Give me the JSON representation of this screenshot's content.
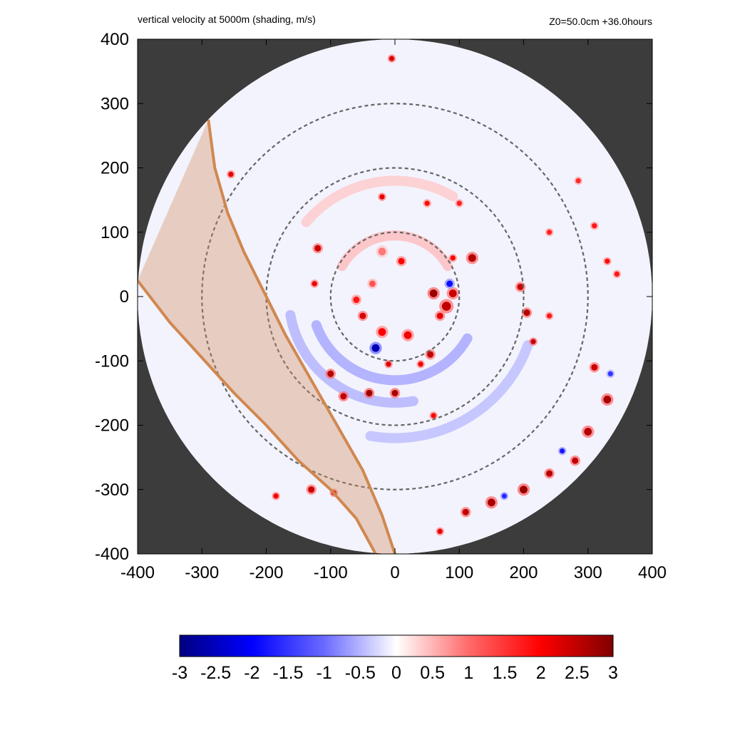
{
  "header": {
    "title": "vertical velocity at 5000m (shading, m/s)",
    "info": "Z0=50.0cm  +36.0hours"
  },
  "chart_data": {
    "type": "heatmap",
    "title": "vertical velocity at 5000m (shading, m/s)",
    "subtitle": "Z0=50.0cm  +36.0hours",
    "xlabel": "",
    "ylabel": "",
    "xlim": [
      -400,
      400
    ],
    "ylim": [
      -400,
      400
    ],
    "xticks": [
      "-400",
      "-300",
      "-200",
      "-100",
      "0",
      "100",
      "200",
      "300",
      "400"
    ],
    "yticks": [
      "400",
      "300",
      "200",
      "100",
      "0",
      "-100",
      "-200",
      "-300",
      "-400"
    ],
    "domain_radius": 400,
    "range_rings": [
      100,
      200,
      300
    ],
    "colorbar": {
      "min": -3,
      "max": 3,
      "ticks": [
        "-3",
        "-2.5",
        "-2",
        "-1.5",
        "-1",
        "-0.5",
        "0",
        "0.5",
        "1",
        "1.5",
        "2",
        "2.5",
        "3"
      ]
    },
    "band": {
      "color": "#d08850",
      "left_edge": [
        [
          -400,
          25
        ],
        [
          -350,
          -40
        ],
        [
          -300,
          -95
        ],
        [
          -250,
          -150
        ],
        [
          -200,
          -200
        ],
        [
          -150,
          -255
        ],
        [
          -100,
          -300
        ],
        [
          -60,
          -345
        ],
        [
          -30,
          -400
        ]
      ],
      "right_edge": [
        [
          -290,
          275
        ],
        [
          -280,
          200
        ],
        [
          -260,
          130
        ],
        [
          -235,
          70
        ],
        [
          -205,
          10
        ],
        [
          -170,
          -60
        ],
        [
          -130,
          -130
        ],
        [
          -90,
          -200
        ],
        [
          -50,
          -270
        ],
        [
          -20,
          -340
        ],
        [
          0,
          -400
        ]
      ]
    },
    "features": [
      {
        "x": -20,
        "y": 70,
        "w": 0.9,
        "r": 6
      },
      {
        "x": 10,
        "y": 55,
        "w": 2.0,
        "r": 5
      },
      {
        "x": 60,
        "y": 5,
        "w": 2.8,
        "r": 6
      },
      {
        "x": 80,
        "y": -15,
        "w": 2.5,
        "r": 7
      },
      {
        "x": 90,
        "y": 5,
        "w": 2.4,
        "r": 6
      },
      {
        "x": 70,
        "y": -30,
        "w": 2.2,
        "r": 5
      },
      {
        "x": 55,
        "y": -90,
        "w": 2.5,
        "r": 5
      },
      {
        "x": 20,
        "y": -60,
        "w": 2.1,
        "r": 6
      },
      {
        "x": -20,
        "y": -55,
        "w": 2.0,
        "r": 6
      },
      {
        "x": -50,
        "y": -30,
        "w": 2.3,
        "r": 5
      },
      {
        "x": -60,
        "y": -5,
        "w": 1.8,
        "r": 5
      },
      {
        "x": -35,
        "y": 20,
        "w": 1.2,
        "r": 5
      },
      {
        "x": -120,
        "y": 75,
        "w": 2.4,
        "r": 5
      },
      {
        "x": -125,
        "y": 20,
        "w": 2.2,
        "r": 4
      },
      {
        "x": -30,
        "y": -80,
        "w": -2.6,
        "r": 6
      },
      {
        "x": 85,
        "y": 20,
        "w": -1.9,
        "r": 5
      },
      {
        "x": -100,
        "y": -120,
        "w": 2.6,
        "r": 5
      },
      {
        "x": -40,
        "y": -150,
        "w": 2.8,
        "r": 5
      },
      {
        "x": 0,
        "y": -150,
        "w": 2.7,
        "r": 5
      },
      {
        "x": -80,
        "y": -155,
        "w": 2.5,
        "r": 5
      },
      {
        "x": -10,
        "y": -105,
        "w": 2.3,
        "r": 4
      },
      {
        "x": 40,
        "y": -105,
        "w": 2.1,
        "r": 4
      },
      {
        "x": 60,
        "y": -185,
        "w": 2.0,
        "r": 4
      },
      {
        "x": 120,
        "y": 60,
        "w": 2.6,
        "r": 6
      },
      {
        "x": 90,
        "y": 60,
        "w": 2.0,
        "r": 4
      },
      {
        "x": 195,
        "y": 15,
        "w": 2.4,
        "r": 5
      },
      {
        "x": 205,
        "y": -25,
        "w": 2.6,
        "r": 5
      },
      {
        "x": 215,
        "y": -70,
        "w": 2.5,
        "r": 4
      },
      {
        "x": 240,
        "y": -30,
        "w": 1.8,
        "r": 4
      },
      {
        "x": -20,
        "y": 155,
        "w": 2.2,
        "r": 4
      },
      {
        "x": 50,
        "y": 145,
        "w": 1.9,
        "r": 4
      },
      {
        "x": 100,
        "y": 145,
        "w": 1.7,
        "r": 4
      },
      {
        "x": 310,
        "y": -110,
        "w": 2.4,
        "r": 5
      },
      {
        "x": 330,
        "y": -160,
        "w": 2.7,
        "r": 6
      },
      {
        "x": 300,
        "y": -210,
        "w": 2.6,
        "r": 6
      },
      {
        "x": 280,
        "y": -255,
        "w": 2.5,
        "r": 5
      },
      {
        "x": 240,
        "y": -275,
        "w": 2.6,
        "r": 5
      },
      {
        "x": 200,
        "y": -300,
        "w": 2.8,
        "r": 6
      },
      {
        "x": 150,
        "y": -320,
        "w": 2.7,
        "r": 6
      },
      {
        "x": 110,
        "y": -335,
        "w": 2.5,
        "r": 5
      },
      {
        "x": 70,
        "y": -365,
        "w": 2.2,
        "r": 4
      },
      {
        "x": 335,
        "y": -120,
        "w": -1.5,
        "r": 4
      },
      {
        "x": 260,
        "y": -240,
        "w": -1.8,
        "r": 4
      },
      {
        "x": 170,
        "y": -310,
        "w": -1.6,
        "r": 4
      },
      {
        "x": -130,
        "y": -300,
        "w": 2.4,
        "r": 5
      },
      {
        "x": -95,
        "y": -305,
        "w": 2.3,
        "r": 4
      },
      {
        "x": -185,
        "y": -310,
        "w": 2.1,
        "r": 4
      },
      {
        "x": -255,
        "y": 190,
        "w": 2.2,
        "r": 4
      },
      {
        "x": -5,
        "y": 370,
        "w": 2.3,
        "r": 4
      },
      {
        "x": 240,
        "y": 100,
        "w": 1.7,
        "r": 4
      },
      {
        "x": 310,
        "y": 110,
        "w": 1.8,
        "r": 4
      },
      {
        "x": 285,
        "y": 180,
        "w": 1.6,
        "r": 4
      },
      {
        "x": 345,
        "y": 35,
        "w": 1.8,
        "r": 4
      },
      {
        "x": 330,
        "y": 55,
        "w": 1.9,
        "r": 4
      }
    ],
    "spiral_bands": [
      {
        "cx": 0,
        "cy": 0,
        "r": 130,
        "start": 200,
        "end": 330,
        "w": -0.7
      },
      {
        "cx": 0,
        "cy": 0,
        "r": 165,
        "start": 190,
        "end": 280,
        "w": -0.6
      },
      {
        "cx": 0,
        "cy": 0,
        "r": 95,
        "start": 30,
        "end": 150,
        "w": 0.5
      },
      {
        "cx": 0,
        "cy": 0,
        "r": 220,
        "start": 260,
        "end": 340,
        "w": -0.5
      },
      {
        "cx": 0,
        "cy": 0,
        "r": 180,
        "start": 60,
        "end": 140,
        "w": 0.4
      }
    ]
  }
}
